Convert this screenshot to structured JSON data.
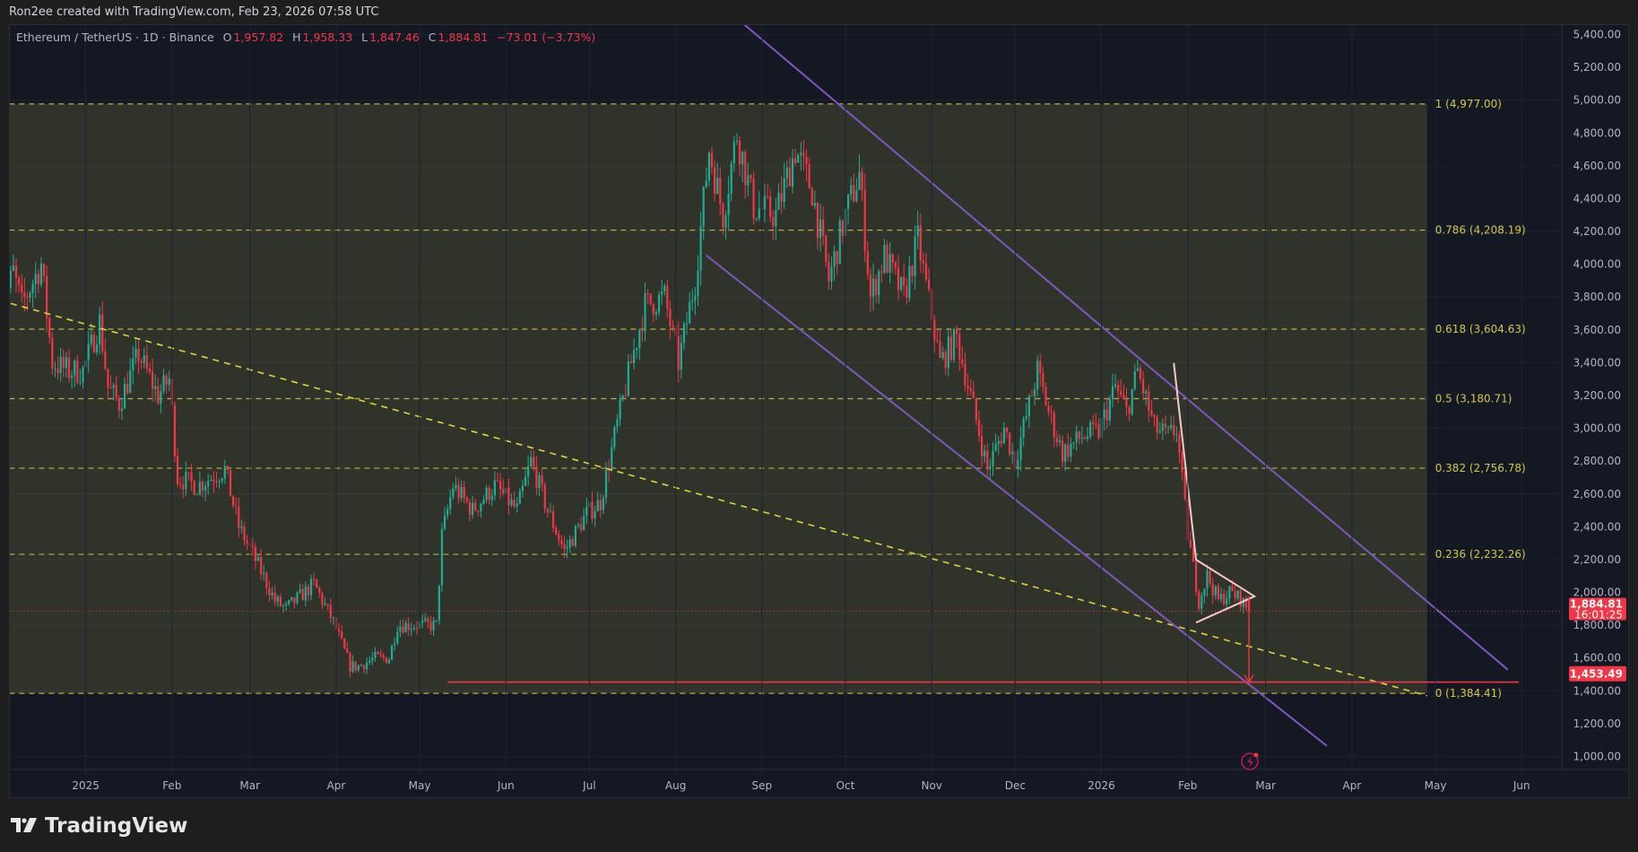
{
  "credit": "Ron2ee created with TradingView.com, Feb 23, 2026 07:58 UTC",
  "legend": {
    "symbol": "Ethereum / TetherUS · 1D · Binance",
    "o_label": "O",
    "o": "1,957.82",
    "h_label": "H",
    "h": "1,958.33",
    "l_label": "L",
    "l": "1,847.46",
    "c_label": "C",
    "c": "1,884.81",
    "change": "−73.01 (−3.73%)"
  },
  "brand": "TradingView",
  "colors": {
    "up": "#22ab94",
    "down": "#f23645",
    "fib": "#d4c94a",
    "channel": "#7e57c2",
    "triangle": "#f8c8c8",
    "target": "#f23645",
    "background": "#141823"
  },
  "chart_data": {
    "type": "candlestick",
    "interval": "1D",
    "ylim": [
      900,
      5500
    ],
    "y_ticks": [
      1000,
      1200,
      1400,
      1600,
      1800,
      2000,
      2200,
      2400,
      2600,
      2800,
      3000,
      3200,
      3400,
      3600,
      3800,
      4000,
      4200,
      4400,
      4600,
      4800,
      5000,
      5200,
      5400
    ],
    "y_tick_labels": [
      "1,000.00",
      "1,200.00",
      "1,400.00",
      "1,600.00",
      "1,800.00",
      "2,000.00",
      "2,200.00",
      "2,400.00",
      "2,600.00",
      "2,800.00",
      "3,000.00",
      "3,200.00",
      "3,400.00",
      "3,600.00",
      "3,800.00",
      "4,000.00",
      "4,200.00",
      "4,400.00",
      "4,600.00",
      "4,800.00",
      "5,000.00",
      "5,200.00",
      "5,400.00"
    ],
    "xlim": [
      "2024-12-01",
      "2026-06-19"
    ],
    "x_ticks": [
      {
        "date": "2025-01-01",
        "label": "2025"
      },
      {
        "date": "2025-02-01",
        "label": "Feb"
      },
      {
        "date": "2025-03-01",
        "label": "Mar"
      },
      {
        "date": "2025-04-01",
        "label": "Apr"
      },
      {
        "date": "2025-05-01",
        "label": "May"
      },
      {
        "date": "2025-06-01",
        "label": "Jun"
      },
      {
        "date": "2025-07-01",
        "label": "Jul"
      },
      {
        "date": "2025-08-01",
        "label": "Aug"
      },
      {
        "date": "2025-09-01",
        "label": "Sep"
      },
      {
        "date": "2025-10-01",
        "label": "Oct"
      },
      {
        "date": "2025-11-01",
        "label": "Nov"
      },
      {
        "date": "2025-12-01",
        "label": "Dec"
      },
      {
        "date": "2026-01-01",
        "label": "2026"
      },
      {
        "date": "2026-02-01",
        "label": "Feb"
      },
      {
        "date": "2026-03-01",
        "label": "Mar"
      },
      {
        "date": "2026-04-01",
        "label": "Apr"
      },
      {
        "date": "2026-05-01",
        "label": "May"
      },
      {
        "date": "2026-06-01",
        "label": "Jun"
      }
    ],
    "close_path": [
      [
        "2024-12-01",
        3700
      ],
      [
        "2024-12-06",
        3950
      ],
      [
        "2024-12-09",
        3750
      ],
      [
        "2024-12-16",
        4000
      ],
      [
        "2024-12-20",
        3400
      ],
      [
        "2024-12-26",
        3350
      ],
      [
        "2024-12-31",
        3350
      ],
      [
        "2025-01-06",
        3650
      ],
      [
        "2025-01-09",
        3250
      ],
      [
        "2025-01-13",
        3150
      ],
      [
        "2025-01-20",
        3450
      ],
      [
        "2025-01-27",
        3200
      ],
      [
        "2025-01-31",
        3300
      ],
      [
        "2025-02-03",
        2700
      ],
      [
        "2025-02-10",
        2650
      ],
      [
        "2025-02-20",
        2750
      ],
      [
        "2025-02-25",
        2400
      ],
      [
        "2025-03-03",
        2200
      ],
      [
        "2025-03-10",
        1950
      ],
      [
        "2025-03-14",
        1900
      ],
      [
        "2025-03-24",
        2050
      ],
      [
        "2025-03-31",
        1820
      ],
      [
        "2025-04-06",
        1550
      ],
      [
        "2025-04-09",
        1550
      ],
      [
        "2025-04-15",
        1600
      ],
      [
        "2025-04-20",
        1600
      ],
      [
        "2025-04-23",
        1800
      ],
      [
        "2025-05-07",
        1800
      ],
      [
        "2025-05-09",
        2350
      ],
      [
        "2025-05-13",
        2650
      ],
      [
        "2025-05-20",
        2500
      ],
      [
        "2025-05-28",
        2650
      ],
      [
        "2025-06-05",
        2500
      ],
      [
        "2025-06-10",
        2800
      ],
      [
        "2025-06-16",
        2500
      ],
      [
        "2025-06-22",
        2250
      ],
      [
        "2025-06-30",
        2480
      ],
      [
        "2025-07-05",
        2550
      ],
      [
        "2025-07-10",
        2950
      ],
      [
        "2025-07-16",
        3400
      ],
      [
        "2025-07-21",
        3750
      ],
      [
        "2025-07-28",
        3800
      ],
      [
        "2025-08-02",
        3400
      ],
      [
        "2025-08-08",
        3900
      ],
      [
        "2025-08-13",
        4700
      ],
      [
        "2025-08-18",
        4300
      ],
      [
        "2025-08-23",
        4800
      ],
      [
        "2025-08-29",
        4350
      ],
      [
        "2025-09-06",
        4300
      ],
      [
        "2025-09-13",
        4700
      ],
      [
        "2025-09-19",
        4450
      ],
      [
        "2025-09-25",
        3900
      ],
      [
        "2025-10-01",
        4300
      ],
      [
        "2025-10-06",
        4550
      ],
      [
        "2025-10-10",
        3800
      ],
      [
        "2025-10-15",
        4050
      ],
      [
        "2025-10-22",
        3800
      ],
      [
        "2025-10-27",
        4150
      ],
      [
        "2025-11-04",
        3400
      ],
      [
        "2025-11-10",
        3550
      ],
      [
        "2025-11-17",
        3050
      ],
      [
        "2025-11-21",
        2750
      ],
      [
        "2025-11-27",
        3000
      ],
      [
        "2025-12-01",
        2800
      ],
      [
        "2025-12-09",
        3350
      ],
      [
        "2025-12-13",
        3100
      ],
      [
        "2025-12-18",
        2850
      ],
      [
        "2025-12-25",
        2950
      ],
      [
        "2025-12-31",
        2980
      ],
      [
        "2026-01-06",
        3250
      ],
      [
        "2026-01-10",
        3100
      ],
      [
        "2026-01-14",
        3350
      ],
      [
        "2026-01-20",
        3000
      ],
      [
        "2026-01-25",
        2950
      ],
      [
        "2026-01-28",
        3000
      ],
      [
        "2026-02-01",
        2350
      ],
      [
        "2026-02-05",
        1950
      ],
      [
        "2026-02-08",
        2100
      ],
      [
        "2026-02-12",
        1950
      ],
      [
        "2026-02-16",
        2000
      ],
      [
        "2026-02-20",
        1960
      ],
      [
        "2026-02-23",
        1884.81
      ]
    ],
    "last_price": {
      "value": 1884.81,
      "label": "1,884.81",
      "countdown": "16:01:25"
    },
    "target_line": {
      "value": 1453.49,
      "label": "1,453.49",
      "from": "2025-05-11",
      "to": "2026-05-31"
    },
    "fibonacci": {
      "from": "2024-12-01",
      "to": "2026-04-28",
      "levels": [
        {
          "ratio": "1",
          "price": 4977.0,
          "label": "1 (4,977.00)"
        },
        {
          "ratio": "0.786",
          "price": 4208.19,
          "label": "0.786 (4,208.19)"
        },
        {
          "ratio": "0.618",
          "price": 3604.63,
          "label": "0.618 (3,604.63)"
        },
        {
          "ratio": "0.5",
          "price": 3180.71,
          "label": "0.5 (3,180.71)"
        },
        {
          "ratio": "0.382",
          "price": 2756.78,
          "label": "0.382 (2,756.78)"
        },
        {
          "ratio": "0.236",
          "price": 2232.26,
          "label": "0.236 (2,232.26)"
        },
        {
          "ratio": "0",
          "price": 1384.41,
          "label": "0 (1,384.41)"
        }
      ]
    },
    "drawings": {
      "dashed_trendline": [
        [
          "2024-12-01",
          3780
        ],
        [
          "2026-04-28",
          1370
        ]
      ],
      "channel_upper": [
        [
          "2025-08-25",
          5470
        ],
        [
          "2026-05-27",
          1529
        ]
      ],
      "channel_lower": [
        [
          "2025-08-12",
          4054
        ],
        [
          "2026-03-23",
          1064
        ]
      ],
      "triangle": [
        [
          "2026-01-27",
          3398
        ],
        [
          "2026-02-04",
          2199
        ],
        [
          "2026-02-25",
          1976
        ],
        [
          "2026-02-04",
          1816
        ]
      ],
      "target_arrow": [
        [
          "2026-02-23",
          1980
        ],
        [
          "2026-02-23",
          1453.49
        ]
      ]
    }
  }
}
